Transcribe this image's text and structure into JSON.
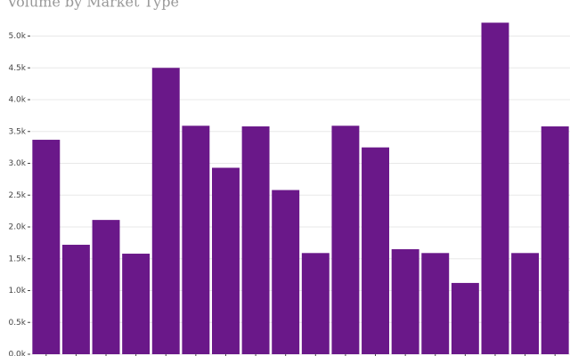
{
  "chart_data": {
    "type": "bar",
    "title": "Volume by Market Type",
    "values": [
      3370,
      1720,
      2110,
      1580,
      4500,
      3590,
      2930,
      3580,
      2580,
      1590,
      3590,
      3250,
      1650,
      1590,
      1120,
      5210,
      1590,
      3580
    ],
    "color": "#6a1889",
    "ylim": [
      0,
      5500
    ],
    "yticks": [
      {
        "value": 0,
        "label": "0.0k"
      },
      {
        "value": 500,
        "label": "0.5k"
      },
      {
        "value": 1000,
        "label": "1.0k"
      },
      {
        "value": 1500,
        "label": "1.5k"
      },
      {
        "value": 2000,
        "label": "2.0k"
      },
      {
        "value": 2500,
        "label": "2.5k"
      },
      {
        "value": 3000,
        "label": "3.0k"
      },
      {
        "value": 3500,
        "label": "3.5k"
      },
      {
        "value": 4000,
        "label": "4.0k"
      },
      {
        "value": 4500,
        "label": "4.5k"
      },
      {
        "value": 5000,
        "label": "5.0k"
      }
    ],
    "grid": true
  }
}
